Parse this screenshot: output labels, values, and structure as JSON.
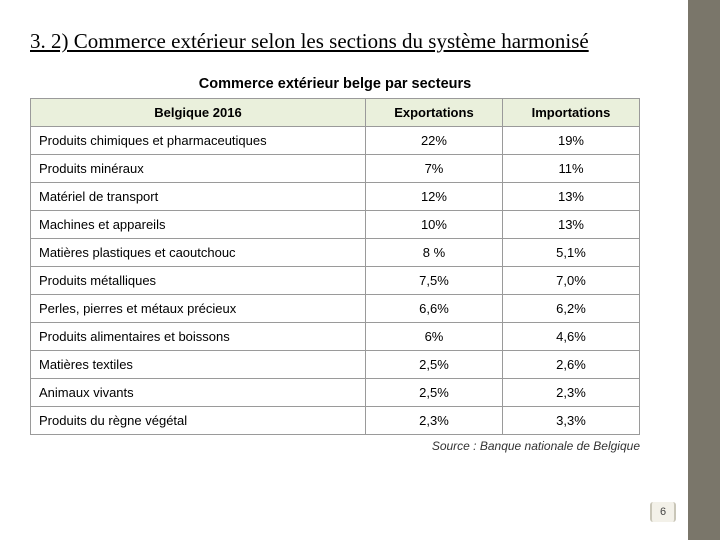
{
  "heading": "3. 2)  Commerce extérieur selon les sections du système harmonisé",
  "table": {
    "title": "Commerce extérieur belge par secteurs",
    "header_bg": "#eaf0dc",
    "border_color": "#9a9a9a",
    "columns": [
      "Belgique 2016",
      "Exportations",
      "Importations"
    ],
    "rows": [
      [
        "Produits chimiques et pharmaceutiques",
        "22%",
        "19%"
      ],
      [
        "Produits minéraux",
        "7%",
        "11%"
      ],
      [
        "Matériel de transport",
        "12%",
        "13%"
      ],
      [
        "Machines et appareils",
        "10%",
        "13%"
      ],
      [
        "Matières plastiques et caoutchouc",
        "8 %",
        "5,1%"
      ],
      [
        "Produits métalliques",
        "7,5%",
        "7,0%"
      ],
      [
        "Perles, pierres et métaux précieux",
        "6,6%",
        "6,2%"
      ],
      [
        "Produits alimentaires et boissons",
        "6%",
        "4,6%"
      ],
      [
        "Matières textiles",
        "2,5%",
        "2,6%"
      ],
      [
        "Animaux vivants",
        "2,5%",
        "2,3%"
      ],
      [
        "Produits du règne végétal",
        "2,3%",
        "3,3%"
      ]
    ],
    "source": "Source : Banque nationale de Belgique"
  },
  "page_number": "6",
  "stripe_color": "#7a766a"
}
